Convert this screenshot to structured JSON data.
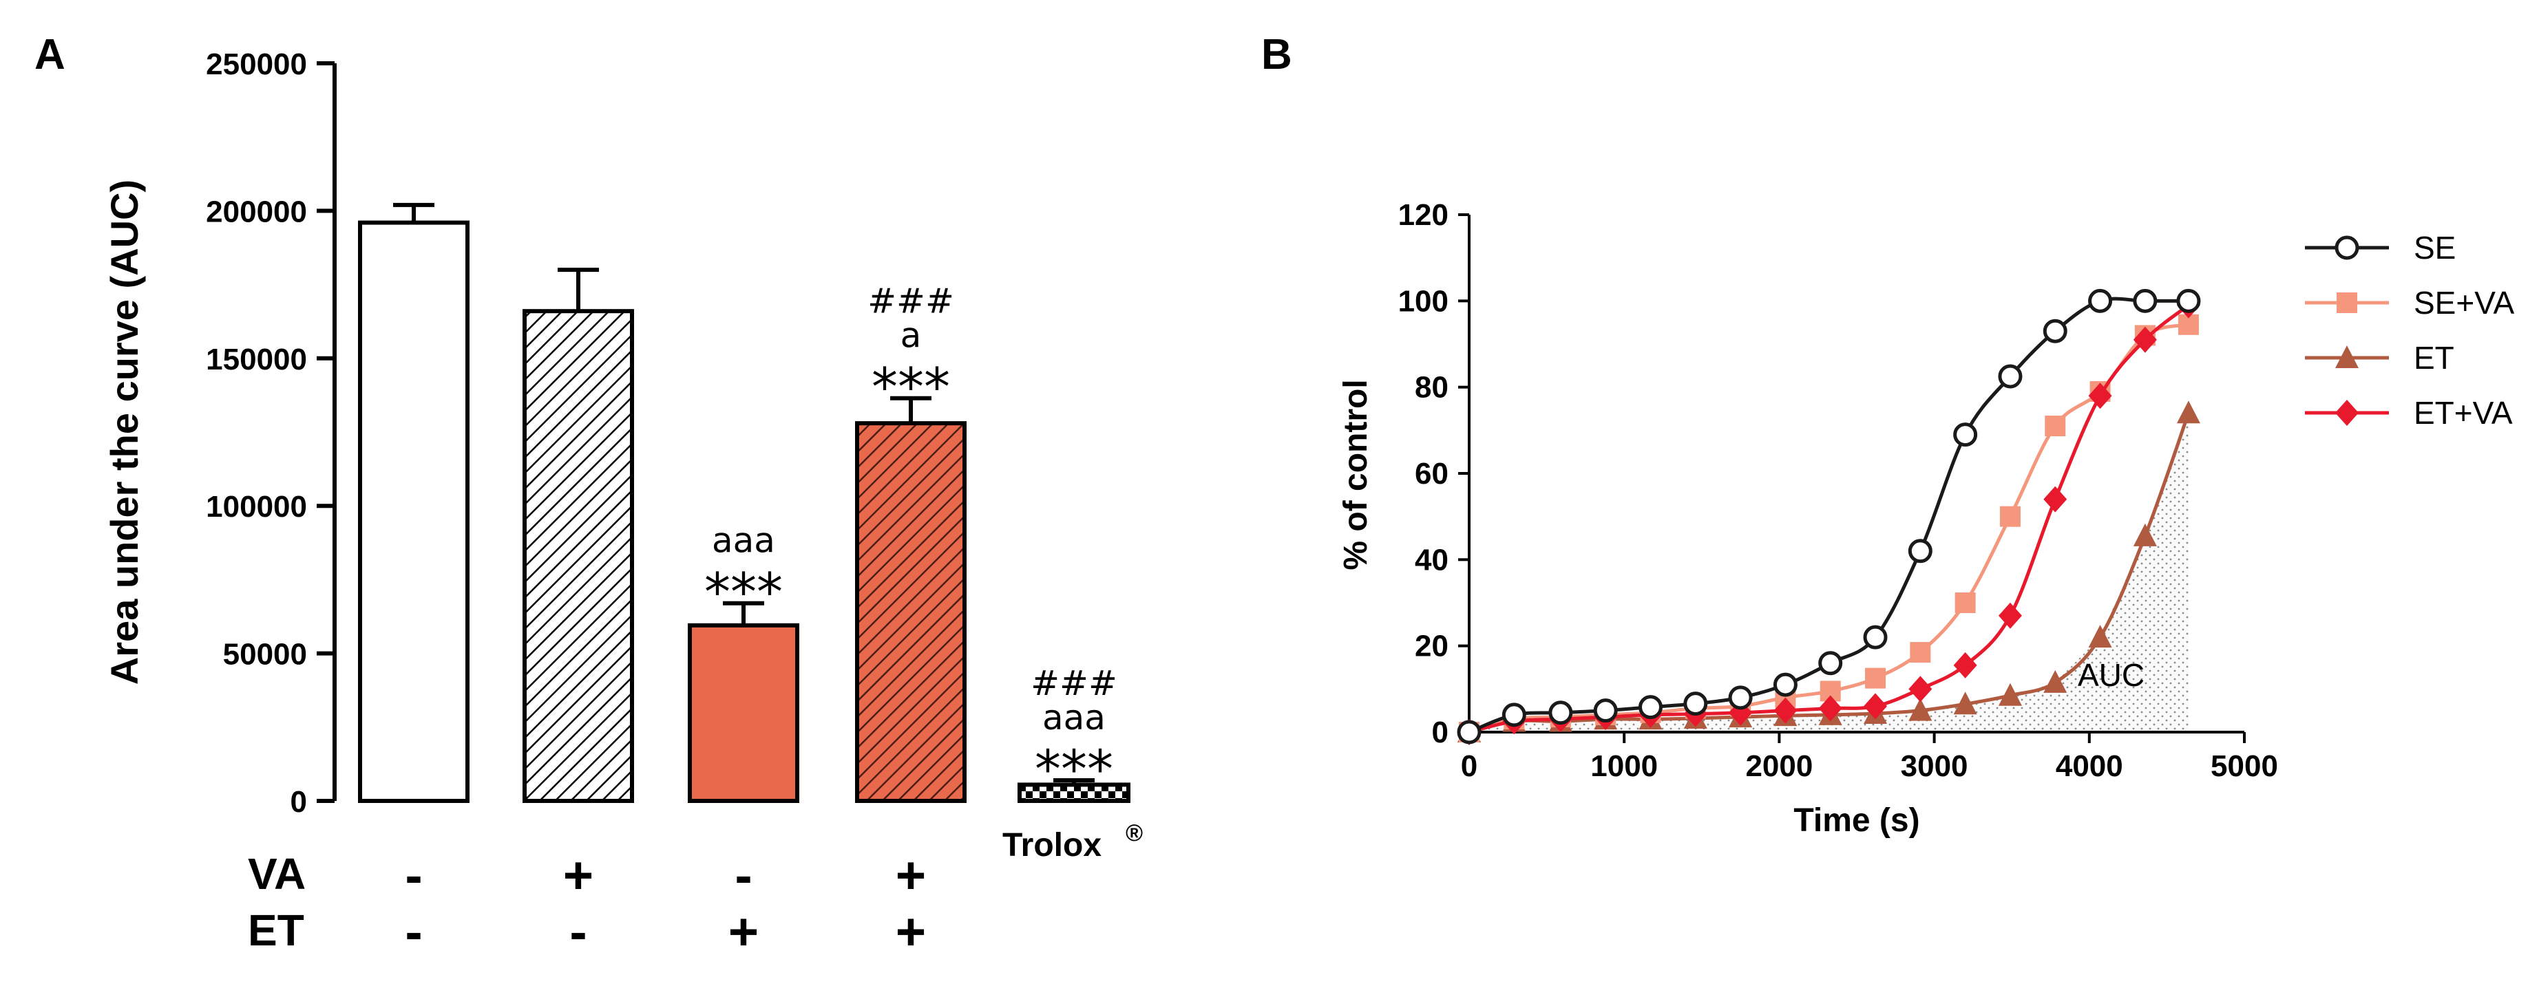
{
  "chart_data": [
    {
      "panel": "A",
      "type": "bar",
      "ylabel": "Area under the curve (AUC)",
      "ylim": [
        0,
        250000
      ],
      "yticks": [
        0,
        50000,
        100000,
        150000,
        200000,
        250000
      ],
      "ytick_labels": [
        "0",
        "50000",
        "100000",
        "150000",
        "200000",
        "250000"
      ],
      "bars": [
        {
          "name": "control",
          "value": 196000,
          "error": 6000,
          "fill": "white",
          "annotations": []
        },
        {
          "name": "VA",
          "value": 166000,
          "error": 14000,
          "fill": "hatch-white",
          "annotations": []
        },
        {
          "name": "ET",
          "value": 59500,
          "error": 7500,
          "fill": "salmon",
          "annotations": [
            "aaa",
            "***"
          ]
        },
        {
          "name": "VA+ET",
          "value": 128000,
          "error": 8500,
          "fill": "hatch-salmon",
          "annotations": [
            "###",
            "a",
            "***"
          ]
        },
        {
          "name": "Trolox",
          "value": 5500,
          "error": 1500,
          "fill": "checker",
          "annotations": [
            "###",
            "aaa",
            "***"
          ]
        }
      ],
      "trolox_label": "Trolox",
      "trolox_mark": "®",
      "factor_rows": [
        {
          "label": "VA",
          "signs": [
            "-",
            "+",
            "-",
            "+"
          ]
        },
        {
          "label": "ET",
          "signs": [
            "-",
            "-",
            "+",
            "+"
          ]
        }
      ],
      "colors": {
        "salmon": "#e8694c",
        "dark": "#000000"
      }
    },
    {
      "panel": "B",
      "type": "line",
      "xlabel": "Time (s)",
      "ylabel": "% of control",
      "xlim": [
        0,
        5000
      ],
      "ylim": [
        0,
        120
      ],
      "xticks": [
        0,
        1000,
        2000,
        3000,
        4000,
        5000
      ],
      "yticks": [
        0,
        20,
        40,
        60,
        80,
        100,
        120
      ],
      "x": [
        0,
        300,
        600,
        900,
        1200,
        1500,
        1800,
        2100,
        2400,
        2700,
        3000,
        3300,
        3600,
        3900,
        4200,
        4500,
        4800
      ],
      "series": [
        {
          "name": "SE",
          "color": "#1a1a1a",
          "marker": "open-circle",
          "points": [
            [
              0,
              0
            ],
            [
              290,
              4
            ],
            [
              590,
              4.5
            ],
            [
              880,
              5
            ],
            [
              1170,
              5.8
            ],
            [
              1460,
              6.6
            ],
            [
              1750,
              8
            ],
            [
              2040,
              11
            ],
            [
              2330,
              16
            ],
            [
              2620,
              22
            ],
            [
              2910,
              42
            ],
            [
              3200,
              69
            ],
            [
              3490,
              82.5
            ],
            [
              3780,
              93
            ],
            [
              4070,
              100
            ],
            [
              4360,
              100
            ],
            [
              4640,
              100
            ]
          ]
        },
        {
          "name": "SE+VA",
          "color": "#f5977d",
          "marker": "square",
          "points": [
            [
              0,
              0
            ],
            [
              290,
              3
            ],
            [
              590,
              3.5
            ],
            [
              880,
              4
            ],
            [
              1170,
              4.5
            ],
            [
              1460,
              5.5
            ],
            [
              1750,
              6
            ],
            [
              2040,
              8
            ],
            [
              2330,
              9.5
            ],
            [
              2620,
              12.5
            ],
            [
              2910,
              18.5
            ],
            [
              3200,
              30
            ],
            [
              3490,
              50
            ],
            [
              3780,
              71
            ],
            [
              4070,
              79
            ],
            [
              4360,
              92
            ],
            [
              4640,
              94.5
            ]
          ]
        },
        {
          "name": "ET",
          "color": "#b05a40",
          "marker": "triangle",
          "points": [
            [
              0,
              0
            ],
            [
              290,
              2.5
            ],
            [
              590,
              2.5
            ],
            [
              880,
              3
            ],
            [
              1170,
              3
            ],
            [
              1460,
              3.2
            ],
            [
              1750,
              3.5
            ],
            [
              2040,
              3.8
            ],
            [
              2330,
              4
            ],
            [
              2620,
              4.3
            ],
            [
              2910,
              5
            ],
            [
              3200,
              6.5
            ],
            [
              3490,
              8.5
            ],
            [
              3780,
              11.5
            ],
            [
              4070,
              22
            ],
            [
              4360,
              45.5
            ],
            [
              4640,
              74
            ]
          ]
        },
        {
          "name": "ET+VA",
          "color": "#e8192c",
          "marker": "diamond",
          "points": [
            [
              0,
              0
            ],
            [
              290,
              2.5
            ],
            [
              590,
              3
            ],
            [
              880,
              3.5
            ],
            [
              1170,
              4
            ],
            [
              1460,
              4.2
            ],
            [
              1750,
              4.5
            ],
            [
              2040,
              5
            ],
            [
              2330,
              5.5
            ],
            [
              2620,
              6
            ],
            [
              2910,
              10
            ],
            [
              3200,
              15.5
            ],
            [
              3490,
              27
            ],
            [
              3780,
              54
            ],
            [
              4070,
              78
            ],
            [
              4360,
              91
            ],
            [
              4640,
              99
            ]
          ]
        }
      ],
      "auc_label": "AUC",
      "auc_series": "ET"
    }
  ]
}
